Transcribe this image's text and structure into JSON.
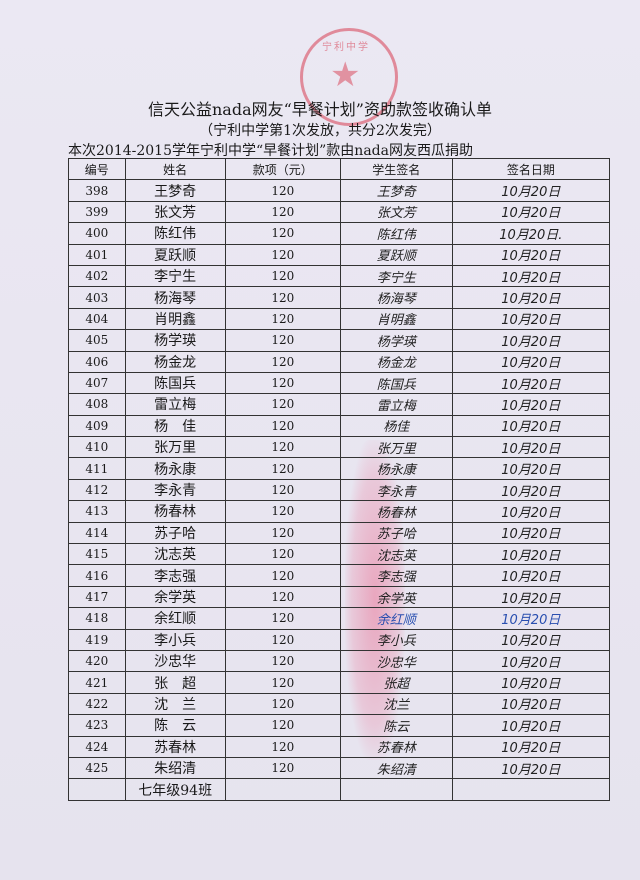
{
  "header": {
    "title": "信天公益nada网友“早餐计划”资助款签收确认单",
    "subtitle": "（宁利中学第1次发放，共分2次发完）",
    "note": "本次2014-2015学年宁利中学“早餐计划”款由nada网友西瓜捐助",
    "stamp_text": "宁利中学"
  },
  "table": {
    "columns": [
      "编号",
      "姓名",
      "款项（元）",
      "学生签名",
      "签名日期"
    ],
    "rows": [
      {
        "id": "398",
        "name": "王梦奇",
        "amount": "120",
        "signature": "王梦奇",
        "date": "10月20日"
      },
      {
        "id": "399",
        "name": "张文芳",
        "amount": "120",
        "signature": "张文芳",
        "date": "10月20日"
      },
      {
        "id": "400",
        "name": "陈红伟",
        "amount": "120",
        "signature": "陈红伟",
        "date": "10月20日."
      },
      {
        "id": "401",
        "name": "夏跃顺",
        "amount": "120",
        "signature": "夏跃顺",
        "date": "10月20日"
      },
      {
        "id": "402",
        "name": "李宁生",
        "amount": "120",
        "signature": "李宁生",
        "date": "10月20日"
      },
      {
        "id": "403",
        "name": "杨海琴",
        "amount": "120",
        "signature": "杨海琴",
        "date": "10月20日"
      },
      {
        "id": "404",
        "name": "肖明鑫",
        "amount": "120",
        "signature": "肖明鑫",
        "date": "10月20日"
      },
      {
        "id": "405",
        "name": "杨学瑛",
        "amount": "120",
        "signature": "杨学瑛",
        "date": "10月20日"
      },
      {
        "id": "406",
        "name": "杨金龙",
        "amount": "120",
        "signature": "杨金龙",
        "date": "10月20日"
      },
      {
        "id": "407",
        "name": "陈国兵",
        "amount": "120",
        "signature": "陈国兵",
        "date": "10月20日"
      },
      {
        "id": "408",
        "name": "雷立梅",
        "amount": "120",
        "signature": "雷立梅",
        "date": "10月20日"
      },
      {
        "id": "409",
        "name": "杨　佳",
        "amount": "120",
        "signature": "杨佳",
        "date": "10月20日"
      },
      {
        "id": "410",
        "name": "张万里",
        "amount": "120",
        "signature": "张万里",
        "date": "10月20日"
      },
      {
        "id": "411",
        "name": "杨永康",
        "amount": "120",
        "signature": "杨永康",
        "date": "10月20日"
      },
      {
        "id": "412",
        "name": "李永青",
        "amount": "120",
        "signature": "李永青",
        "date": "10月20日"
      },
      {
        "id": "413",
        "name": "杨春林",
        "amount": "120",
        "signature": "杨春林",
        "date": "10月20日"
      },
      {
        "id": "414",
        "name": "苏子哈",
        "amount": "120",
        "signature": "苏子哈",
        "date": "10月20日"
      },
      {
        "id": "415",
        "name": "沈志英",
        "amount": "120",
        "signature": "沈志英",
        "date": "10月20日"
      },
      {
        "id": "416",
        "name": "李志强",
        "amount": "120",
        "signature": "李志强",
        "date": "10月20日"
      },
      {
        "id": "417",
        "name": "余学英",
        "amount": "120",
        "signature": "余学英",
        "date": "10月20日"
      },
      {
        "id": "418",
        "name": "余红顺",
        "amount": "120",
        "signature": "余红顺",
        "date": "10月20日",
        "ink": "blue"
      },
      {
        "id": "419",
        "name": "李小兵",
        "amount": "120",
        "signature": "李小兵",
        "date": "10月20日"
      },
      {
        "id": "420",
        "name": "沙忠华",
        "amount": "120",
        "signature": "沙忠华",
        "date": "10月20日"
      },
      {
        "id": "421",
        "name": "张　超",
        "amount": "120",
        "signature": "张超",
        "date": "10月20日"
      },
      {
        "id": "422",
        "name": "沈　兰",
        "amount": "120",
        "signature": "沈兰",
        "date": "10月20日"
      },
      {
        "id": "423",
        "name": "陈　云",
        "amount": "120",
        "signature": "陈云",
        "date": "10月20日"
      },
      {
        "id": "424",
        "name": "苏春林",
        "amount": "120",
        "signature": "苏春林",
        "date": "10月20日"
      },
      {
        "id": "425",
        "name": "朱绍清",
        "amount": "120",
        "signature": "朱绍清",
        "date": "10月20日"
      }
    ],
    "footer_class": "七年级94班"
  },
  "colors": {
    "stamp": "#d73c50",
    "ink": "#222222",
    "blue_ink": "#2a4fb0",
    "paper": "#e9e6f0"
  }
}
